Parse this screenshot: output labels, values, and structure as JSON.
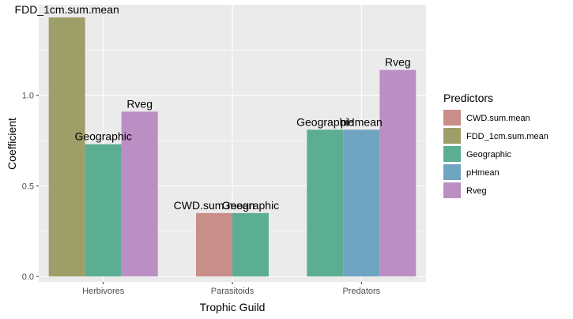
{
  "chart_data": {
    "type": "bar",
    "xlabel": "Trophic Guild",
    "ylabel": "Coefficient",
    "ylim": [
      -0.03,
      1.5
    ],
    "yticks": [
      "0.0",
      "0.5",
      "1.0"
    ],
    "grid": true,
    "legend": {
      "title": "Predictors",
      "placement": "right",
      "items": [
        {
          "name": "CWD.sum.mean",
          "color": "#C98E8A"
        },
        {
          "name": "FDD_1cm.sum.mean",
          "color": "#9E9F68"
        },
        {
          "name": "Geographic",
          "color": "#5BAE91"
        },
        {
          "name": "pHmean",
          "color": "#6FA4C3"
        },
        {
          "name": "Rveg",
          "color": "#BC8FC4"
        }
      ]
    },
    "categories": [
      "Herbivores",
      "Parasitoids",
      "Predators"
    ],
    "groups": [
      {
        "category": "Herbivores",
        "bars": [
          {
            "predictor": "FDD_1cm.sum.mean",
            "value": 1.43,
            "label": "FDD_1cm.sum.mean"
          },
          {
            "predictor": "Geographic",
            "value": 0.73,
            "label": "Geographic"
          },
          {
            "predictor": "Rveg",
            "value": 0.91,
            "label": "Rveg"
          }
        ]
      },
      {
        "category": "Parasitoids",
        "bars": [
          {
            "predictor": "CWD.sum.mean",
            "value": 0.35,
            "label": "CWD.sum.mean"
          },
          {
            "predictor": "Geographic",
            "value": 0.35,
            "label": "Geographic"
          }
        ]
      },
      {
        "category": "Predators",
        "bars": [
          {
            "predictor": "Geographic",
            "value": 0.81,
            "label": "Geographic"
          },
          {
            "predictor": "pHmean",
            "value": 0.81,
            "label": "pHmean"
          },
          {
            "predictor": "Rveg",
            "value": 1.14,
            "label": "Rveg"
          }
        ]
      }
    ]
  }
}
